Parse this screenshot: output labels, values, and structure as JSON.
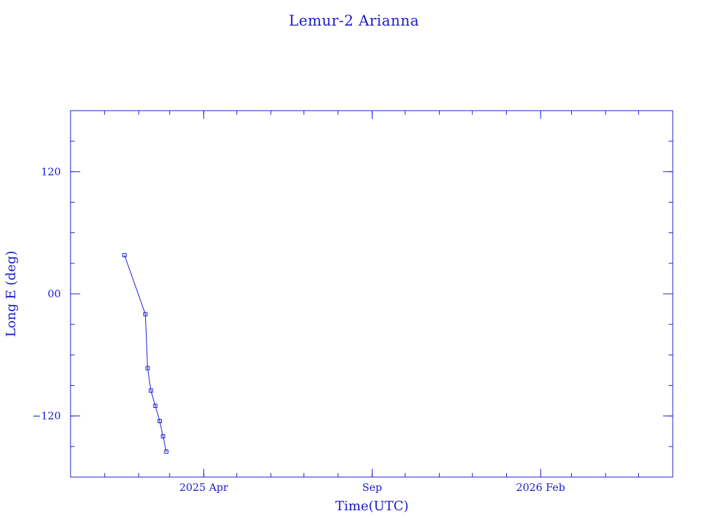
{
  "chart_data": {
    "type": "line",
    "title": "Lemur-2 Arianna",
    "xlabel": "Time(UTC)",
    "ylabel": "Long E (deg)",
    "x_tick_labels": [
      {
        "label": "2025 Apr",
        "date": "2025-04-01"
      },
      {
        "label": "Sep",
        "date": "2025-09-01"
      },
      {
        "label": "2026 Feb",
        "date": "2026-02-01"
      }
    ],
    "xlim": [
      "2024-12-01",
      "2026-06-01"
    ],
    "ylim": [
      -180,
      180
    ],
    "y_ticks": [
      {
        "label": "120",
        "value": 120
      },
      {
        "label": "00",
        "value": 0
      },
      {
        "label": "−120",
        "value": -120
      }
    ],
    "grid": false,
    "color": "#1a1adc",
    "series": [
      {
        "points": [
          {
            "date": "2025-01-19",
            "long": 38
          },
          {
            "date": "2025-02-07",
            "long": -20
          },
          {
            "date": "2025-02-09",
            "long": -73
          },
          {
            "date": "2025-02-12",
            "long": -95
          },
          {
            "date": "2025-02-16",
            "long": -110
          },
          {
            "date": "2025-02-20",
            "long": -125
          },
          {
            "date": "2025-02-23",
            "long": -140
          },
          {
            "date": "2025-02-26",
            "long": -155
          }
        ]
      }
    ]
  }
}
